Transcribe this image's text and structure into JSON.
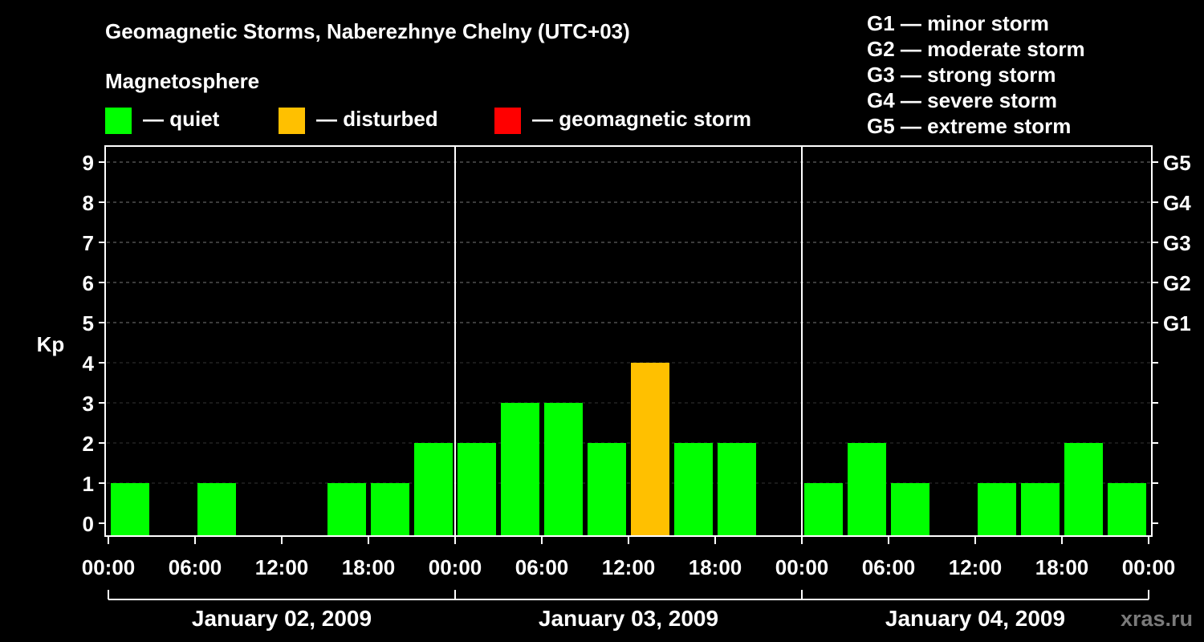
{
  "title": "Geomagnetic Storms, Naberezhnye Chelny (UTC+03)",
  "magnetosphere_label": "Magnetosphere",
  "legend": [
    {
      "label": "— quiet",
      "color": "#00ff00"
    },
    {
      "label": "— disturbed",
      "color": "#ffc000"
    },
    {
      "label": "— geomagnetic storm",
      "color": "#ff0000"
    }
  ],
  "g_scale": [
    "G1 — minor storm",
    "G2 — moderate storm",
    "G3 — strong storm",
    "G4 — severe storm",
    "G5 — extreme storm"
  ],
  "watermark": "xras.ru",
  "chart_data": {
    "type": "bar",
    "ylabel": "Kp",
    "ylim": [
      0,
      9
    ],
    "y_ticks": [
      "0",
      "1",
      "2",
      "3",
      "4",
      "5",
      "6",
      "7",
      "8",
      "9"
    ],
    "right_axis_labels": [
      {
        "kp": 5,
        "label": "G1"
      },
      {
        "kp": 6,
        "label": "G2"
      },
      {
        "kp": 7,
        "label": "G3"
      },
      {
        "kp": 8,
        "label": "G4"
      },
      {
        "kp": 9,
        "label": "G5"
      }
    ],
    "x_tick_labels": [
      "00:00",
      "06:00",
      "12:00",
      "18:00",
      "00:00",
      "06:00",
      "12:00",
      "18:00",
      "00:00",
      "06:00",
      "12:00",
      "18:00",
      "00:00"
    ],
    "days": [
      "January 02, 2009",
      "January 03, 2009",
      "January 04, 2009"
    ],
    "interval_hours": 3,
    "values": [
      1,
      0,
      1,
      0,
      0,
      1,
      1,
      2,
      2,
      3,
      3,
      2,
      4,
      2,
      2,
      0,
      1,
      2,
      1,
      0,
      1,
      1,
      2,
      1
    ],
    "colors": {
      "quiet": "#00ff00",
      "disturbed": "#ffc000",
      "storm": "#ff0000"
    },
    "grid": true
  }
}
